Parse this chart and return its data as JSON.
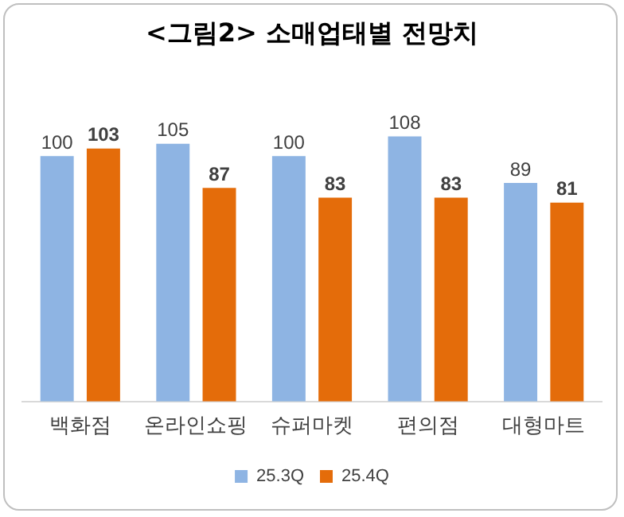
{
  "chart_data": {
    "type": "bar",
    "title": "<그림2> 소매업태별 전망치",
    "categories": [
      "백화점",
      "온라인쇼핑",
      "슈퍼마켓",
      "편의점",
      "대형마트"
    ],
    "series": [
      {
        "name": "25.3Q",
        "color": "#8eb4e3",
        "values": [
          100,
          105,
          100,
          108,
          89
        ]
      },
      {
        "name": "25.4Q",
        "color": "#e46c0a",
        "values": [
          103,
          87,
          83,
          83,
          81
        ]
      }
    ],
    "data_labels": true,
    "legend": "bottom",
    "grid": false
  }
}
